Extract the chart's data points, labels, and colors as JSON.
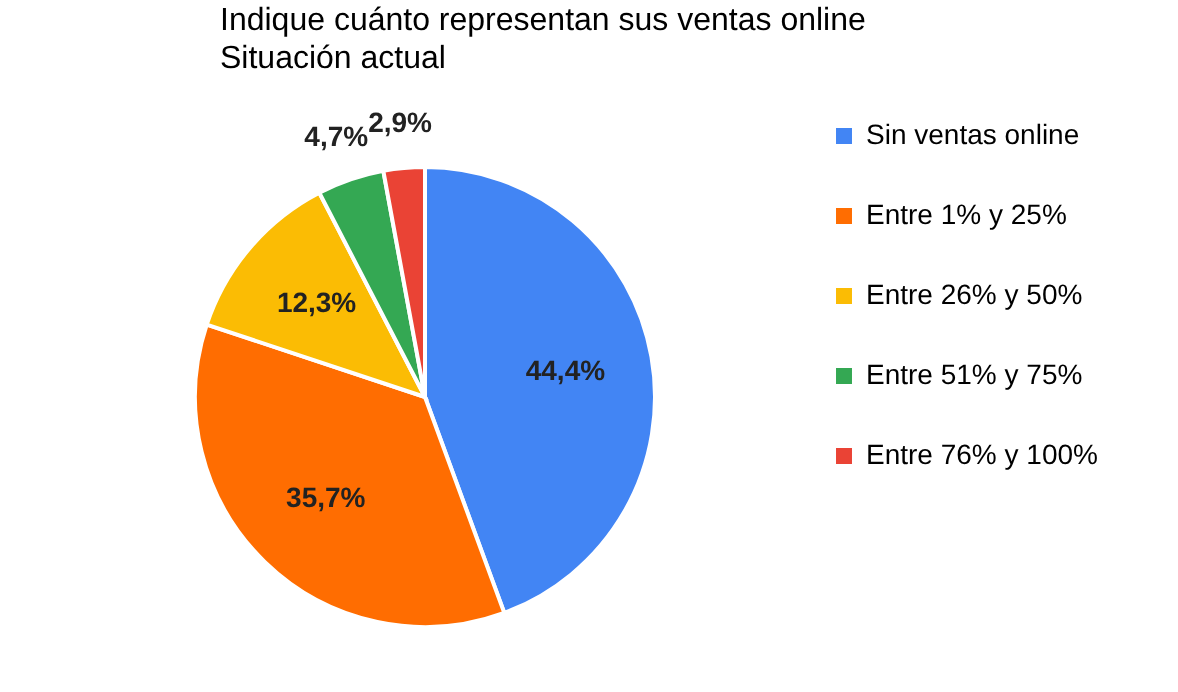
{
  "chart_data": {
    "type": "pie",
    "title": "Indique cuánto representan sus ventas online",
    "subtitle": "Situación actual",
    "categories": [
      "Sin ventas online",
      "Entre 1% y 25%",
      "Entre 26% y 50%",
      "Entre 51% y 75%",
      "Entre 76% y 100%"
    ],
    "values": [
      44.4,
      35.7,
      12.3,
      4.7,
      2.9
    ],
    "value_labels": [
      "44,4%",
      "35,7%",
      "12,3%",
      "4,7%",
      "2,9%"
    ],
    "colors": [
      "#4285f4",
      "#ff6d01",
      "#fbbc04",
      "#34a853",
      "#ea4335"
    ],
    "legend": "right"
  }
}
